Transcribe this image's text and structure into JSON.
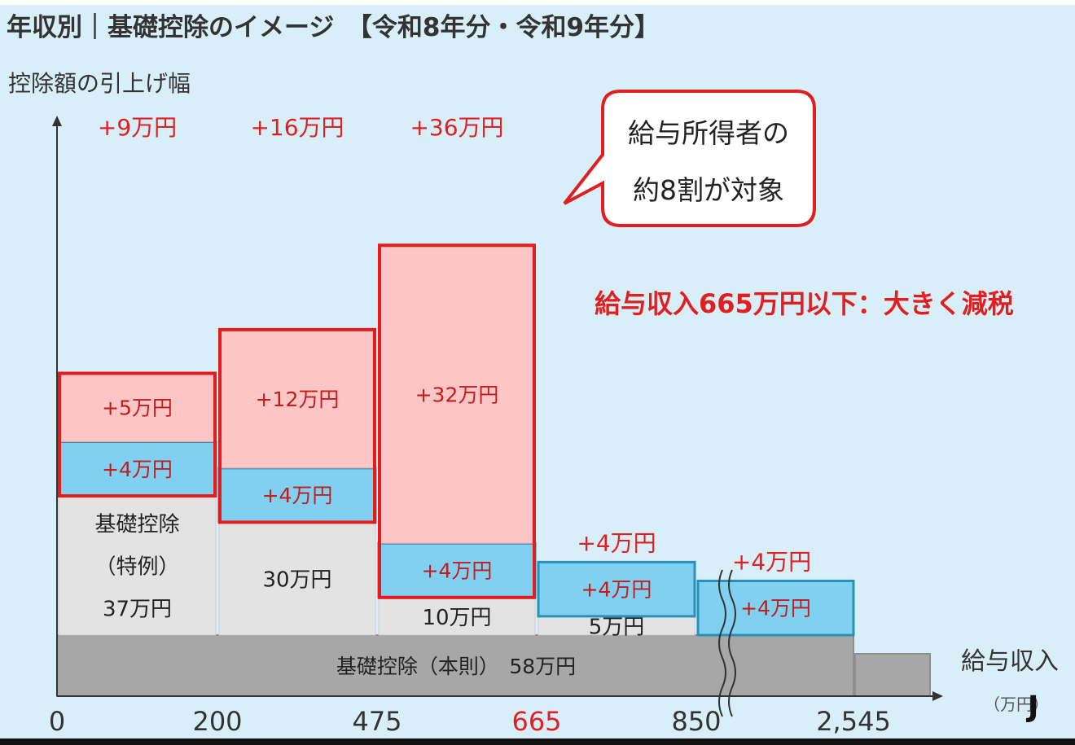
{
  "title": "年収別｜基礎控除のイメージ　【令和8年分・令和9年分】",
  "ylabel": "控除額の引上げ幅",
  "xlabel": "給与収入",
  "xunit": "（万円）",
  "callout": {
    "line1": "給与所得者の",
    "line2": "約8割が対象"
  },
  "note": "給与収入665万円以下：大きく減税",
  "colors": {
    "background": "#d8eef8",
    "red": "#e02020",
    "pink": "#fcc5c5",
    "blue": "#7fcdef",
    "blue_border": "#2a90b8",
    "gray": "#e3e3e3",
    "dark_gray": "#a8a8a8",
    "frame_red": "#e41c1c"
  },
  "chart_data": {
    "type": "bar",
    "x_ticks": [
      "0",
      "200",
      "475",
      "665",
      "850",
      "2,545"
    ],
    "x_tick_highlight": "665",
    "income_brackets": [
      {
        "from": 0,
        "to": 200,
        "special_label": "基礎控除\n（特例）\n37万円",
        "special": 37,
        "add_label": "+5万円",
        "add": 5,
        "blue_label": "+4万円",
        "blue": 4,
        "total_label": "+9万円",
        "total": 9
      },
      {
        "from": 200,
        "to": 475,
        "special_label": "30万円",
        "special": 30,
        "add_label": "+12万円",
        "add": 12,
        "blue_label": "+4万円",
        "blue": 4,
        "total_label": "+16万円",
        "total": 16
      },
      {
        "from": 475,
        "to": 665,
        "special_label": "10万円",
        "special": 10,
        "add_label": "+32万円",
        "add": 32,
        "blue_label": "+4万円",
        "blue": 4,
        "total_label": "+36万円",
        "total": 36
      },
      {
        "from": 665,
        "to": 850,
        "special_label": "5万円",
        "special": 5,
        "add_label": "",
        "add": 0,
        "blue_label": "+4万円",
        "blue": 4,
        "total_label": "+4万円",
        "total": 4
      },
      {
        "from": 850,
        "to": 2545,
        "special_label": "",
        "special": 0,
        "add_label": "",
        "add": 0,
        "blue_label": "+4万円",
        "blue": 4,
        "total_label": "+4万円",
        "total": 4
      }
    ],
    "base": {
      "label": "基礎控除（本則）　58万円",
      "value": 58
    }
  }
}
